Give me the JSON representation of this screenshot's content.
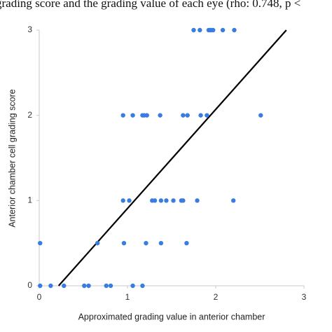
{
  "chart_data": {
    "type": "scatter",
    "title": "grading score and the grading value of each eye (rho: 0.748, p <",
    "x_label": "Approximated grading value in anterior chamber",
    "y_label": "Anterior chamber cell grading score",
    "xlim": [
      0,
      3
    ],
    "ylim": [
      0,
      3
    ],
    "xticks": [
      0,
      1,
      2,
      3
    ],
    "yticks": [
      0,
      1,
      2,
      3
    ],
    "grid": false,
    "points": {
      "color": "#3a7de0",
      "x": [
        1.75,
        1.82,
        1.92,
        1.94,
        1.95,
        1.97,
        2.08,
        2.21,
        0.95,
        1.06,
        1.17,
        1.19,
        1.22,
        1.37,
        1.63,
        1.68,
        1.83,
        1.9,
        2.51,
        0.95,
        1.02,
        1.28,
        1.31,
        1.38,
        1.44,
        1.52,
        1.61,
        1.63,
        1.79,
        2.2,
        0.01,
        0.66,
        0.96,
        1.21,
        1.38,
        1.67,
        0.01,
        0.13,
        0.28,
        0.51,
        0.56,
        0.76,
        0.81,
        1.06,
        1.17
      ],
      "values": [
        3,
        3,
        3,
        3,
        3,
        3,
        3,
        3,
        2,
        2,
        2,
        2,
        2,
        2,
        2,
        2,
        2,
        2,
        2,
        1,
        1,
        1,
        1,
        1,
        1,
        1,
        1,
        1,
        1,
        1,
        0.5,
        0.5,
        0.5,
        0.5,
        0.5,
        0.5,
        0,
        0,
        0,
        0,
        0,
        0,
        0,
        0,
        0
      ]
    },
    "fit_line": {
      "color": "#000000",
      "x": [
        0.22,
        2.8
      ],
      "values": [
        0,
        3
      ]
    }
  }
}
